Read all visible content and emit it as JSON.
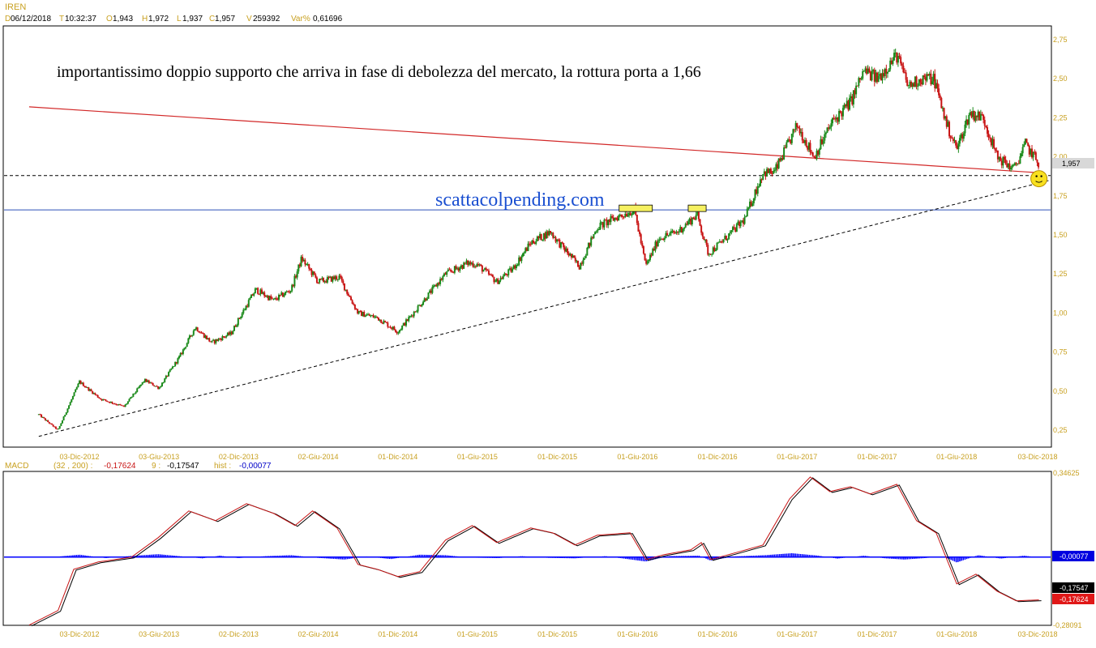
{
  "header": {
    "symbol": "IREN",
    "date_key": "D",
    "date": "06/12/2018",
    "time_key": "T",
    "time": "10:32:37",
    "open_key": "O",
    "open": "1,943",
    "high_key": "H",
    "high": "1,972",
    "low_key": "L",
    "low": "1,937",
    "close_key": "C",
    "close": "1,957",
    "volume_key": "V",
    "volume": "259392",
    "var_key": "Var%",
    "var": "0,61696"
  },
  "annotation": "importantissimo doppio supporto che arriva in fase di debolezza del mercato, la rottura porta a 1,66",
  "watermark": "scattacolpending.com",
  "colors": {
    "up": "#1a8a1a",
    "down": "#c81414",
    "trendline": "#d22828",
    "support": "#2c50b8",
    "histogram": "#0000ff",
    "axis_text": "#c8a020"
  },
  "chart_data": [
    {
      "type": "candlestick",
      "title": "IREN",
      "ylim": [
        0.15,
        2.85
      ],
      "y_ticks": [
        "2,75",
        "2,50",
        "2,25",
        "2,00",
        "1,75",
        "1,50",
        "1,25",
        "1,00",
        "0,75",
        "0,50",
        "0,25"
      ],
      "x_ticks": [
        "03-Dic-2012",
        "03-Giu-2013",
        "02-Dic-2013",
        "02-Giu-2014",
        "01-Dic-2014",
        "01-Giu-2015",
        "01-Dic-2015",
        "01-Giu-2016",
        "01-Dic-2016",
        "01-Giu-2017",
        "01-Dic-2017",
        "01-Giu-2018",
        "03-Dic-2018"
      ],
      "last_price_label": "1,957",
      "price_path": [
        [
          "2012-09-01",
          0.35
        ],
        [
          "2012-10-15",
          0.25
        ],
        [
          "2012-12-03",
          0.56
        ],
        [
          "2013-01-20",
          0.45
        ],
        [
          "2013-03-15",
          0.4
        ],
        [
          "2013-05-01",
          0.57
        ],
        [
          "2013-06-03",
          0.52
        ],
        [
          "2013-07-20",
          0.72
        ],
        [
          "2013-08-25",
          0.91
        ],
        [
          "2013-10-01",
          0.81
        ],
        [
          "2013-11-15",
          0.87
        ],
        [
          "2013-12-02",
          0.96
        ],
        [
          "2014-01-10",
          1.15
        ],
        [
          "2014-02-20",
          1.08
        ],
        [
          "2014-04-01",
          1.15
        ],
        [
          "2014-04-25",
          1.35
        ],
        [
          "2014-06-02",
          1.2
        ],
        [
          "2014-07-20",
          1.23
        ],
        [
          "2014-09-01",
          1.0
        ],
        [
          "2014-10-15",
          0.97
        ],
        [
          "2014-12-01",
          0.88
        ],
        [
          "2015-01-20",
          1.05
        ],
        [
          "2015-03-20",
          1.25
        ],
        [
          "2015-05-10",
          1.32
        ],
        [
          "2015-06-01",
          1.31
        ],
        [
          "2015-07-15",
          1.2
        ],
        [
          "2015-08-20",
          1.28
        ],
        [
          "2015-10-01",
          1.45
        ],
        [
          "2015-11-15",
          1.52
        ],
        [
          "2015-12-01",
          1.46
        ],
        [
          "2016-01-20",
          1.3
        ],
        [
          "2016-03-01",
          1.55
        ],
        [
          "2016-04-20",
          1.62
        ],
        [
          "2016-05-25",
          1.66
        ],
        [
          "2016-06-20",
          1.3
        ],
        [
          "2016-07-20",
          1.48
        ],
        [
          "2016-09-01",
          1.52
        ],
        [
          "2016-10-15",
          1.63
        ],
        [
          "2016-11-10",
          1.38
        ],
        [
          "2016-12-20",
          1.48
        ],
        [
          "2017-02-01",
          1.6
        ],
        [
          "2017-03-15",
          1.9
        ],
        [
          "2017-04-10",
          1.9
        ],
        [
          "2017-06-01",
          2.2
        ],
        [
          "2017-07-10",
          2.0
        ],
        [
          "2017-08-20",
          2.22
        ],
        [
          "2017-10-01",
          2.35
        ],
        [
          "2017-11-01",
          2.55
        ],
        [
          "2017-12-01",
          2.5
        ],
        [
          "2018-01-15",
          2.65
        ],
        [
          "2018-02-10",
          2.45
        ],
        [
          "2018-03-10",
          2.5
        ],
        [
          "2018-04-10",
          2.5
        ],
        [
          "2018-05-10",
          2.2
        ],
        [
          "2018-06-01",
          2.05
        ],
        [
          "2018-07-01",
          2.28
        ],
        [
          "2018-08-01",
          2.25
        ],
        [
          "2018-09-01",
          2.0
        ],
        [
          "2018-10-10",
          1.92
        ],
        [
          "2018-11-05",
          2.08
        ],
        [
          "2018-12-06",
          1.957
        ]
      ],
      "trendlines": [
        {
          "name": "red-downtrend",
          "from": [
            "2012-08-10",
            2.32
          ],
          "to": [
            "2018-11-25",
            1.9
          ]
        },
        {
          "name": "dashed-uptrend",
          "from": [
            "2012-09-01",
            0.21
          ],
          "to": [
            "2018-12-31",
            1.85
          ]
        }
      ],
      "horizontal_lines": [
        {
          "name": "dashed-support",
          "value": 1.88
        },
        {
          "name": "blue-support",
          "value": 1.66
        }
      ],
      "highlight_boxes": [
        {
          "name": "top-2016-a",
          "from": "2016-04-20",
          "to": "2016-07-05",
          "value": 1.66
        },
        {
          "name": "top-2016-b",
          "from": "2016-09-25",
          "to": "2016-11-05",
          "value": 1.66
        }
      ],
      "marker": {
        "name": "smiley",
        "at": [
          "2018-12-06",
          1.86
        ]
      }
    },
    {
      "type": "line",
      "title": "MACD",
      "params_label": "(32 , 200) :",
      "macd_value": "-0,17624",
      "signal_key": "9 :",
      "signal_value": "-0,17547",
      "hist_key": "hist :",
      "hist_value": "-0,00077",
      "ylim": [
        -0.285,
        0.35
      ],
      "y_ticks": [
        "0,34625",
        "-0,28091"
      ],
      "x_ticks": [
        "03-Dic-2012",
        "03-Giu-2013",
        "02-Dic-2013",
        "02-Giu-2014",
        "01-Dic-2014",
        "01-Giu-2015",
        "01-Dic-2015",
        "01-Giu-2016",
        "01-Dic-2016",
        "01-Giu-2017",
        "01-Dic-2017",
        "01-Giu-2018",
        "03-Dic-2018"
      ],
      "series": [
        {
          "name": "MACD",
          "values": [
            [
              "2012-08-10",
              -0.28
            ],
            [
              "2012-10-15",
              -0.22
            ],
            [
              "2012-11-20",
              -0.05
            ],
            [
              "2013-01-15",
              -0.02
            ],
            [
              "2013-04-01",
              0.0
            ],
            [
              "2013-06-01",
              0.08
            ],
            [
              "2013-08-10",
              0.19
            ],
            [
              "2013-10-10",
              0.15
            ],
            [
              "2013-12-20",
              0.22
            ],
            [
              "2014-02-20",
              0.18
            ],
            [
              "2014-04-10",
              0.13
            ],
            [
              "2014-05-20",
              0.19
            ],
            [
              "2014-07-15",
              0.12
            ],
            [
              "2014-09-01",
              -0.03
            ],
            [
              "2014-10-15",
              -0.05
            ],
            [
              "2014-12-01",
              -0.08
            ],
            [
              "2015-01-20",
              -0.06
            ],
            [
              "2015-03-20",
              0.07
            ],
            [
              "2015-05-20",
              0.13
            ],
            [
              "2015-07-15",
              0.06
            ],
            [
              "2015-10-01",
              0.12
            ],
            [
              "2015-11-20",
              0.1
            ],
            [
              "2016-01-10",
              0.05
            ],
            [
              "2016-03-01",
              0.09
            ],
            [
              "2016-05-15",
              0.1
            ],
            [
              "2016-06-20",
              -0.01
            ],
            [
              "2016-08-01",
              0.01
            ],
            [
              "2016-10-01",
              0.03
            ],
            [
              "2016-10-25",
              0.06
            ],
            [
              "2016-11-15",
              -0.01
            ],
            [
              "2017-01-15",
              0.02
            ],
            [
              "2017-03-15",
              0.05
            ],
            [
              "2017-05-15",
              0.24
            ],
            [
              "2017-07-01",
              0.33
            ],
            [
              "2017-08-15",
              0.27
            ],
            [
              "2017-10-01",
              0.29
            ],
            [
              "2017-11-15",
              0.26
            ],
            [
              "2018-01-15",
              0.3
            ],
            [
              "2018-03-01",
              0.15
            ],
            [
              "2018-04-15",
              0.1
            ],
            [
              "2018-06-01",
              -0.11
            ],
            [
              "2018-07-15",
              -0.07
            ],
            [
              "2018-09-01",
              -0.14
            ],
            [
              "2018-10-15",
              -0.18
            ],
            [
              "2018-12-06",
              -0.176
            ]
          ]
        }
      ],
      "histogram": [
        [
          "2012-10-01",
          0.0
        ],
        [
          "2012-12-03",
          0.01
        ],
        [
          "2013-02-01",
          -0.004
        ],
        [
          "2013-04-01",
          0.005
        ],
        [
          "2013-06-01",
          0.012
        ],
        [
          "2013-07-20",
          0.004
        ],
        [
          "2013-09-10",
          -0.005
        ],
        [
          "2013-10-20",
          0.006
        ],
        [
          "2013-12-01",
          -0.004
        ],
        [
          "2014-02-01",
          0.004
        ],
        [
          "2014-04-01",
          0.008
        ],
        [
          "2014-06-01",
          -0.003
        ],
        [
          "2014-08-01",
          -0.01
        ],
        [
          "2014-09-20",
          0.003
        ],
        [
          "2014-11-15",
          -0.008
        ],
        [
          "2015-01-20",
          0.01
        ],
        [
          "2015-03-20",
          0.008
        ],
        [
          "2015-05-15",
          -0.002
        ],
        [
          "2015-07-20",
          -0.004
        ],
        [
          "2015-09-10",
          0.004
        ],
        [
          "2015-11-10",
          -0.003
        ],
        [
          "2016-01-10",
          -0.005
        ],
        [
          "2016-03-20",
          0.004
        ],
        [
          "2016-06-20",
          -0.018
        ],
        [
          "2016-08-10",
          0.004
        ],
        [
          "2016-10-20",
          0.006
        ],
        [
          "2016-11-15",
          -0.014
        ],
        [
          "2017-01-10",
          0.003
        ],
        [
          "2017-03-20",
          0.008
        ],
        [
          "2017-05-20",
          0.016
        ],
        [
          "2017-07-20",
          0.006
        ],
        [
          "2017-09-01",
          -0.006
        ],
        [
          "2017-11-01",
          0.006
        ],
        [
          "2017-12-20",
          -0.005
        ],
        [
          "2018-02-01",
          -0.01
        ],
        [
          "2018-03-20",
          -0.004
        ],
        [
          "2018-05-01",
          0.003
        ],
        [
          "2018-06-01",
          -0.022
        ],
        [
          "2018-07-20",
          0.008
        ],
        [
          "2018-09-10",
          -0.006
        ],
        [
          "2018-11-01",
          0.006
        ],
        [
          "2018-12-06",
          -0.001
        ]
      ]
    }
  ]
}
